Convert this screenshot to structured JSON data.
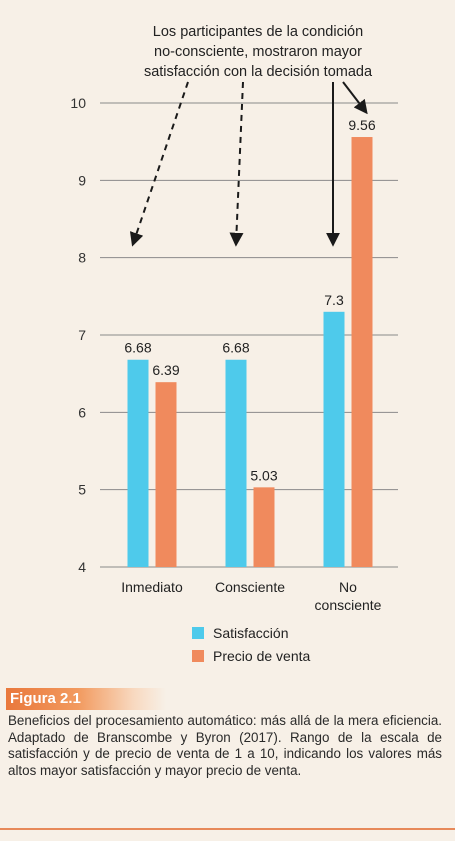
{
  "chart_data": {
    "type": "bar",
    "categories": [
      "Inmediato",
      "Consciente",
      "No consciente"
    ],
    "category_lines": [
      [
        "Inmediato"
      ],
      [
        "Consciente"
      ],
      [
        "No",
        "consciente"
      ]
    ],
    "series": [
      {
        "name": "Satisfacción",
        "values": [
          6.68,
          6.68,
          7.3
        ],
        "labels": [
          "6.68",
          "6.68",
          "7.3"
        ],
        "color": "#4ecaeb"
      },
      {
        "name": "Precio de venta",
        "values": [
          6.39,
          5.03,
          9.56
        ],
        "labels": [
          "6.39",
          "5.03",
          "9.56"
        ],
        "color": "#f08a5d"
      }
    ],
    "ylim": [
      4,
      10
    ],
    "yticks": [
      4,
      5,
      6,
      7,
      8,
      9,
      10
    ],
    "grid": true,
    "legend_position": "bottom",
    "annotation": {
      "lines": [
        "Los participantes de la condición",
        "no-consciente, mostraron mayor",
        "satisfacción con la decisión tomada"
      ]
    }
  },
  "figure": {
    "label": "Figura 2.1",
    "caption": "Beneficios del procesamiento automático: más allá de la mera eficiencia. Adaptado de Branscombe y Byron (2017). Rango de la escala de satisfacción y de precio de venta de 1 a 10, indicando los valores más altos mayor satisfacción y mayor precio de venta."
  },
  "colors": {
    "background": "#f7f0e7",
    "badge": "#e9783c",
    "satisfaccion": "#4ecaeb",
    "precio": "#f08a5d"
  }
}
